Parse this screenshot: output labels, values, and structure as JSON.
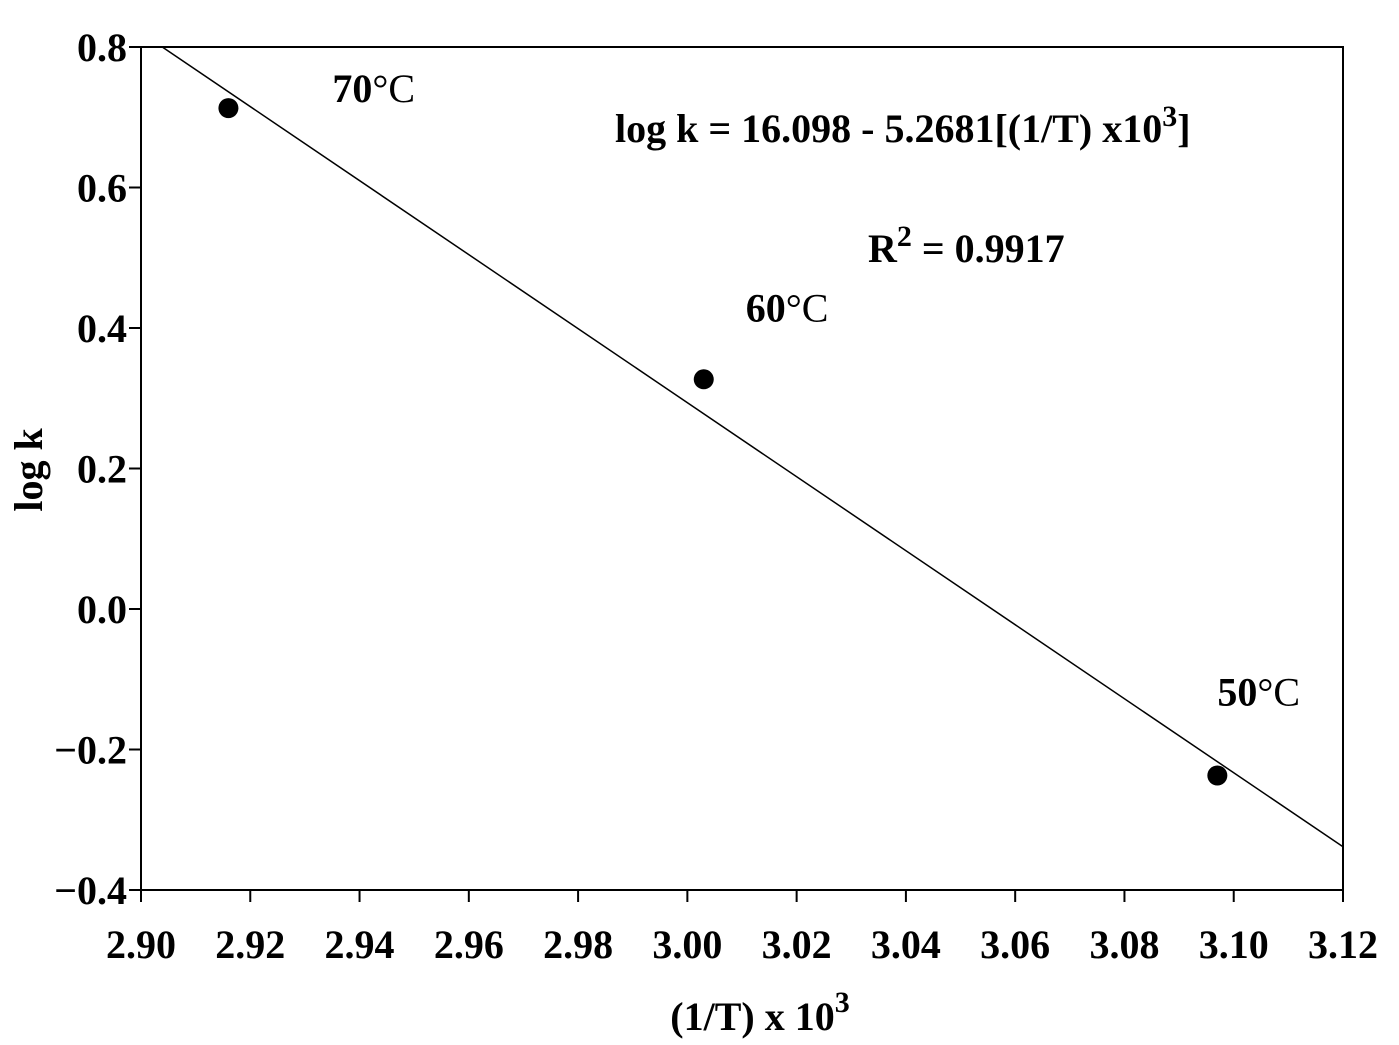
{
  "chart_data": {
    "type": "scatter",
    "xlabel": "(1/T) x 10",
    "xlabel_sup": "3",
    "ylabel": "log k",
    "xlim": [
      2.9,
      3.12
    ],
    "ylim": [
      -0.4,
      0.8
    ],
    "x_ticks": [
      "2.90",
      "2.92",
      "2.94",
      "2.96",
      "2.98",
      "3.00",
      "3.02",
      "3.04",
      "3.06",
      "3.08",
      "3.10",
      "3.12"
    ],
    "y_ticks": [
      "0.8",
      "0.6",
      "0.4",
      "0.2",
      "0.0",
      "−0.2",
      "−0.4"
    ],
    "y_tick_values": [
      0.8,
      0.6,
      0.4,
      0.2,
      0.0,
      -0.2,
      -0.4
    ],
    "points": [
      {
        "x": 2.916,
        "y": 0.713,
        "label_num": "70",
        "label_unit": "°C"
      },
      {
        "x": 3.003,
        "y": 0.327,
        "label_num": "60",
        "label_unit": "°C"
      },
      {
        "x": 3.097,
        "y": -0.237,
        "label_num": "50",
        "label_unit": "°C"
      }
    ],
    "fit_line": {
      "intercept": 16.098,
      "slope": -5.2681
    },
    "equation_text": "log k = 16.098 - 5.2681[(1/T) x10",
    "equation_sup": "3",
    "equation_end": "]",
    "r2_label": "R",
    "r2_sup": "2",
    "r2_value": " = 0.9917",
    "grid": false,
    "legend": "none"
  }
}
